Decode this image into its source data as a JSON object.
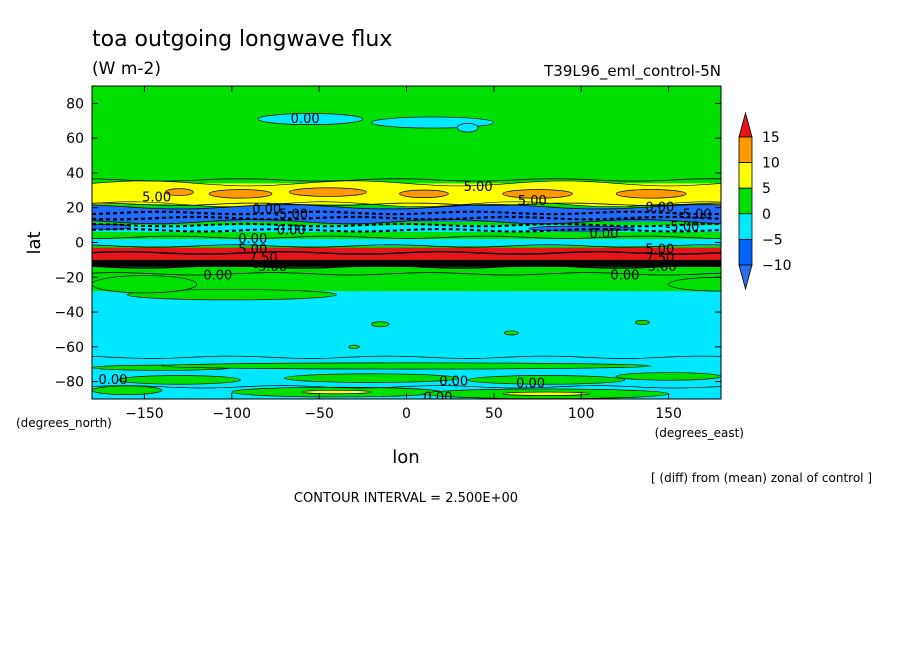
{
  "figure": {
    "title": "toa outgoing longwave flux",
    "units": "(W m-2)",
    "experiment": "T39L96_eml_control-5N",
    "contour_interval": "CONTOUR INTERVAL = 2.500E+00",
    "footnote": "[ (diff) from (mean) zonal of control ]"
  },
  "chart_data": {
    "type": "heatmap",
    "title": "toa outgoing longwave flux",
    "xlabel": "lon",
    "ylabel": "lat",
    "x_units": "(degrees_east)",
    "y_units": "(degrees_north)",
    "xlim": [
      -180,
      180
    ],
    "ylim": [
      -90,
      90
    ],
    "x_ticks": [
      -150,
      -100,
      -50,
      0,
      50,
      100,
      150
    ],
    "x_tick_labels": [
      "−150",
      "−100",
      "−50",
      "0",
      "50",
      "100",
      "150"
    ],
    "y_ticks": [
      80,
      60,
      40,
      20,
      0,
      -20,
      -40,
      -60,
      -80
    ],
    "y_tick_labels": [
      "80",
      "60",
      "40",
      "20",
      "0",
      "−20",
      "−40",
      "−60",
      "−80"
    ],
    "colorbar": {
      "labels": [
        "15",
        "10",
        "5",
        "0",
        "−5",
        "−10"
      ],
      "levels": [
        15,
        10,
        5,
        0,
        -5,
        -10
      ],
      "colors": [
        "#e8141c",
        "#ff9900",
        "#ffff00",
        "#00e000",
        "#00e8ff",
        "#0064ff",
        "#2b6fe8"
      ]
    },
    "fill_colors": {
      "strong_positive": "#e8141c",
      "positive_10": "#ff9900",
      "positive_5": "#ffff00",
      "near_zero": "#00e000",
      "negative_5": "#00e8ff",
      "negative_10": "#1f6cff",
      "dark_band": "#000000"
    },
    "zonal_bands": [
      {
        "lat_from": 90,
        "lat_to": 40,
        "category": "near_zero"
      },
      {
        "lat_from": 34,
        "lat_to": 22,
        "category": "positive_5"
      },
      {
        "lat_from": 20,
        "lat_to": 12,
        "category": "negative_10"
      },
      {
        "lat_from": 10,
        "lat_to": 6,
        "category": "negative_5"
      },
      {
        "lat_from": 2,
        "lat_to": -2,
        "category": "negative_5"
      },
      {
        "lat_from": -3,
        "lat_to": -10,
        "category": "strong_positive"
      },
      {
        "lat_from": -10,
        "lat_to": -14,
        "category": "dark_band"
      },
      {
        "lat_from": -28,
        "lat_to": -90,
        "category": "negative_5"
      }
    ],
    "contour_labels": [
      {
        "text": "0.00",
        "lon": -58,
        "lat": 71
      },
      {
        "text": "5.00",
        "lon": -143,
        "lat": 26
      },
      {
        "text": "5.00",
        "lon": 41,
        "lat": 32
      },
      {
        "text": "5.00",
        "lon": 72,
        "lat": 24
      },
      {
        "text": "0.00",
        "lon": 145,
        "lat": 20
      },
      {
        "text": "0.00",
        "lon": -80,
        "lat": 19
      },
      {
        "text": "-5.00",
        "lon": -66,
        "lat": 16
      },
      {
        "text": "-5.00",
        "lon": 165,
        "lat": 16
      },
      {
        "text": "-5.00",
        "lon": 158,
        "lat": 9
      },
      {
        "text": "0.00",
        "lon": -66,
        "lat": 7
      },
      {
        "text": "0.00",
        "lon": 113,
        "lat": 5
      },
      {
        "text": "0.00",
        "lon": -88,
        "lat": 2
      },
      {
        "text": "5.00",
        "lon": -88,
        "lat": -4
      },
      {
        "text": "7.50",
        "lon": -82,
        "lat": -9
      },
      {
        "text": "5.00",
        "lon": 145,
        "lat": -4
      },
      {
        "text": "7.50",
        "lon": 145,
        "lat": -9
      },
      {
        "text": "-5.00",
        "lon": 145,
        "lat": -14
      },
      {
        "text": "-5.00",
        "lon": -78,
        "lat": -14
      },
      {
        "text": "0.00",
        "lon": -108,
        "lat": -19
      },
      {
        "text": "0.00",
        "lon": 125,
        "lat": -19
      },
      {
        "text": "0.00",
        "lon": -168,
        "lat": -79
      },
      {
        "text": "0.00",
        "lon": 27,
        "lat": -80
      },
      {
        "text": "0.00",
        "lon": 71,
        "lat": -81
      },
      {
        "text": "0.00",
        "lon": 18,
        "lat": -89
      }
    ]
  }
}
